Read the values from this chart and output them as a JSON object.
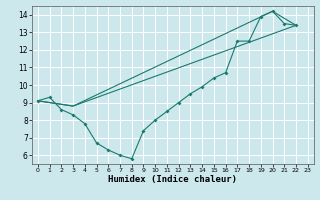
{
  "title": "",
  "xlabel": "Humidex (Indice chaleur)",
  "ylabel": "",
  "bg_color": "#cce8ed",
  "grid_color": "#ffffff",
  "line_color": "#1a7a6e",
  "xlim": [
    -0.5,
    23.5
  ],
  "ylim": [
    5.5,
    14.5
  ],
  "xticks": [
    0,
    1,
    2,
    3,
    4,
    5,
    6,
    7,
    8,
    9,
    10,
    11,
    12,
    13,
    14,
    15,
    16,
    17,
    18,
    19,
    20,
    21,
    22,
    23
  ],
  "yticks": [
    6,
    7,
    8,
    9,
    10,
    11,
    12,
    13,
    14
  ],
  "line1": {
    "x": [
      0,
      1,
      2,
      3,
      4,
      5,
      6,
      7,
      8,
      9,
      10,
      11,
      12,
      13,
      14,
      15,
      16,
      17,
      18,
      19,
      20,
      21,
      22
    ],
    "y": [
      9.1,
      9.3,
      8.6,
      8.3,
      7.8,
      6.7,
      6.3,
      6.0,
      5.8,
      7.4,
      8.0,
      8.5,
      9.0,
      9.5,
      9.9,
      10.4,
      10.7,
      12.5,
      12.5,
      13.9,
      14.2,
      13.5,
      13.4
    ]
  },
  "line2": {
    "x": [
      0,
      3,
      22
    ],
    "y": [
      9.1,
      8.8,
      13.4
    ]
  },
  "line3": {
    "x": [
      0,
      3,
      20,
      22
    ],
    "y": [
      9.1,
      8.8,
      14.2,
      13.4
    ]
  }
}
